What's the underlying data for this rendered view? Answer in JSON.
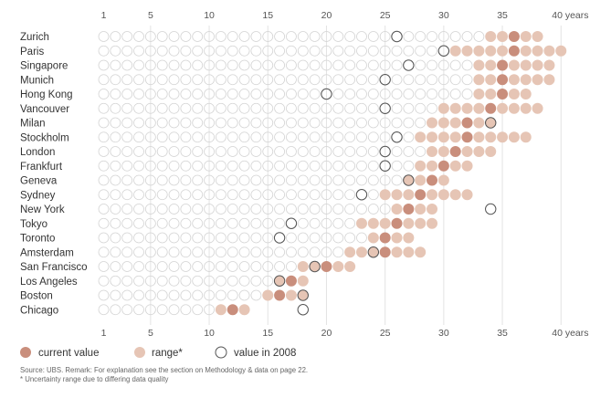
{
  "chart_data": {
    "type": "scatter",
    "x_unit": "years",
    "x_ticks": [
      "1",
      "5",
      "10",
      "15",
      "20",
      "25",
      "30",
      "35",
      "40 years"
    ],
    "x_tick_values": [
      1,
      5,
      10,
      15,
      20,
      25,
      30,
      35,
      40
    ],
    "xlim": [
      1,
      40
    ],
    "grid": true,
    "legend_placement": "bottom-left",
    "legend": {
      "current": "current value",
      "range": "range*",
      "y2008": "value in 2008"
    },
    "colors": {
      "current": "#c98e7c",
      "range": "#e6c5b5",
      "empty_stroke": "#d4d4d4",
      "value_2008_stroke": "#555555",
      "gridline": "#e3e3e3"
    },
    "cities": [
      {
        "name": "Zurich",
        "current": 36,
        "range": [
          34,
          38
        ],
        "y2008": 26
      },
      {
        "name": "Paris",
        "current": 36,
        "range": [
          31,
          40
        ],
        "y2008": 30
      },
      {
        "name": "Singapore",
        "current": 35,
        "range": [
          33,
          39
        ],
        "y2008": 27
      },
      {
        "name": "Munich",
        "current": 35,
        "range": [
          33,
          39
        ],
        "y2008": 25
      },
      {
        "name": "Hong Kong",
        "current": 35,
        "range": [
          33,
          37
        ],
        "y2008": 20
      },
      {
        "name": "Vancouver",
        "current": 34,
        "range": [
          30,
          38
        ],
        "y2008": 25
      },
      {
        "name": "Milan",
        "current": 32,
        "range": [
          29,
          34
        ],
        "y2008": 34
      },
      {
        "name": "Stockholm",
        "current": 32,
        "range": [
          28,
          37
        ],
        "y2008": 26
      },
      {
        "name": "London",
        "current": 31,
        "range": [
          29,
          34
        ],
        "y2008": 25
      },
      {
        "name": "Frankfurt",
        "current": 30,
        "range": [
          28,
          32
        ],
        "y2008": 25
      },
      {
        "name": "Geneva",
        "current": 29,
        "range": [
          27,
          30
        ],
        "y2008": 27
      },
      {
        "name": "Sydney",
        "current": 28,
        "range": [
          25,
          32
        ],
        "y2008": 23
      },
      {
        "name": "New York",
        "current": 27,
        "range": [
          26,
          29
        ],
        "y2008": 34
      },
      {
        "name": "Tokyo",
        "current": 26,
        "range": [
          23,
          29
        ],
        "y2008": 17
      },
      {
        "name": "Toronto",
        "current": 25,
        "range": [
          24,
          27
        ],
        "y2008": 16
      },
      {
        "name": "Amsterdam",
        "current": 25,
        "range": [
          22,
          28
        ],
        "y2008": 24
      },
      {
        "name": "San Francisco",
        "current": 20,
        "range": [
          18,
          22
        ],
        "y2008": 19
      },
      {
        "name": "Los Angeles",
        "current": 17,
        "range": [
          16,
          18
        ],
        "y2008": 16
      },
      {
        "name": "Boston",
        "current": 16,
        "range": [
          15,
          18
        ],
        "y2008": 18
      },
      {
        "name": "Chicago",
        "current": 12,
        "range": [
          11,
          13
        ],
        "y2008": 18
      }
    ]
  },
  "footnote": {
    "source": "Source: UBS. Remark: For explanation see the section on Methodology & data on page 22.",
    "note": "* Uncertainty range due to differing data quality"
  }
}
